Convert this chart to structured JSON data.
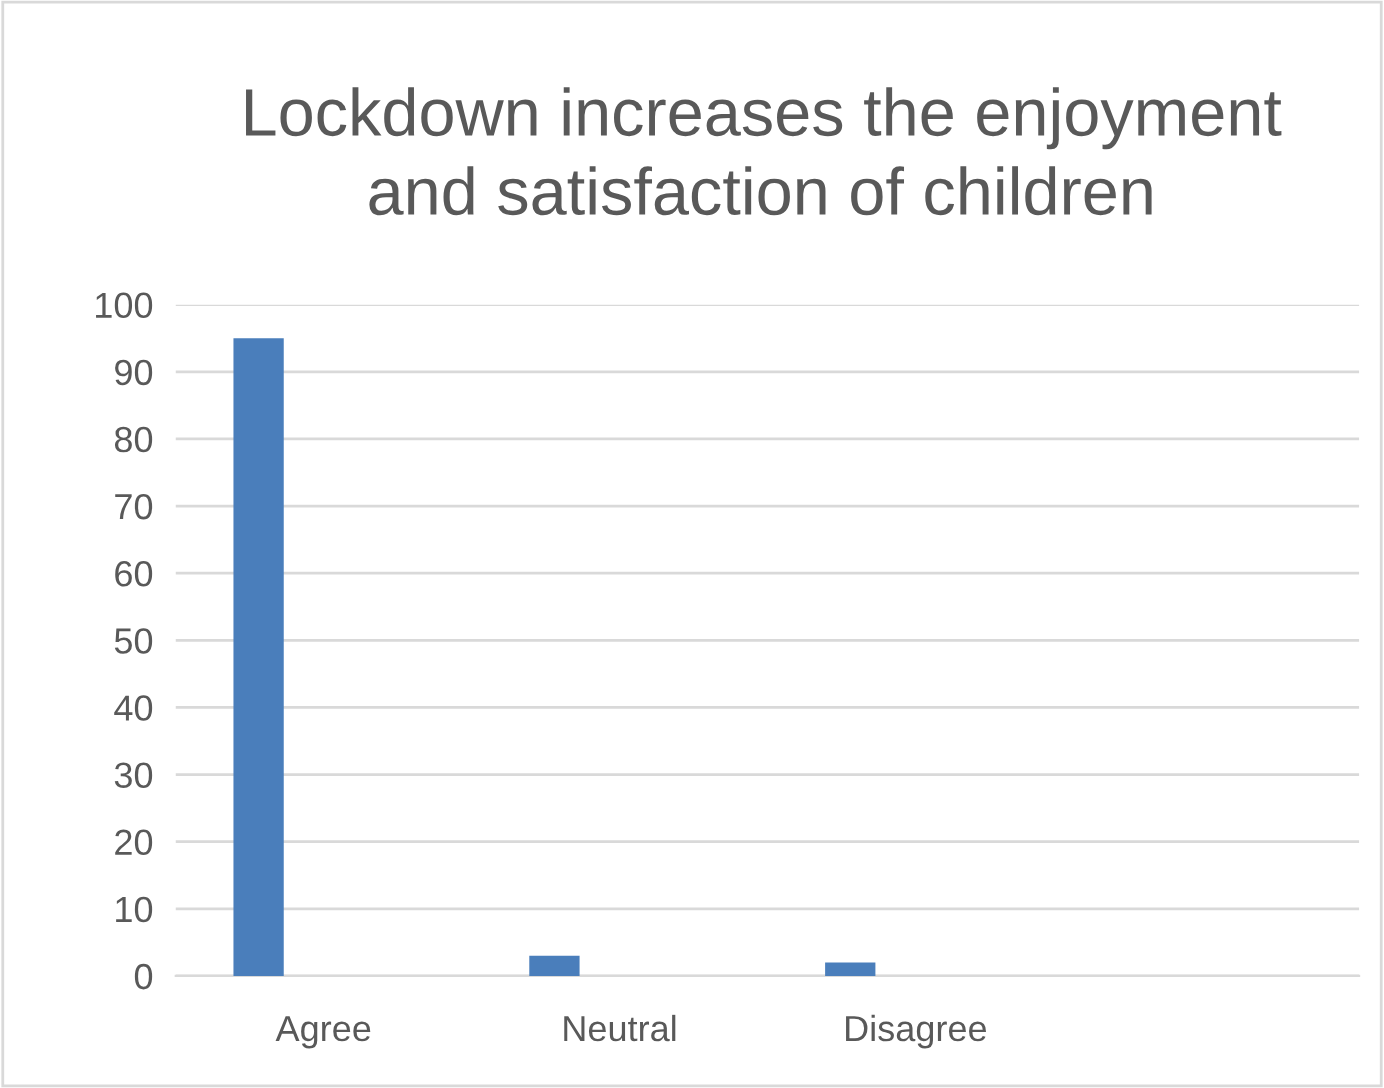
{
  "chart_data": {
    "type": "bar",
    "title": "Lockdown increases the enjoyment\nand satisfaction of children",
    "categories": [
      "Agree",
      "Neutral",
      "Disagree",
      null
    ],
    "values": [
      95,
      3,
      2,
      null
    ],
    "color": "#4a7ebb",
    "ylim": [
      0,
      100
    ],
    "yticks": [
      0,
      10,
      20,
      30,
      40,
      50,
      60,
      70,
      80,
      90,
      100
    ],
    "grid": "y"
  }
}
